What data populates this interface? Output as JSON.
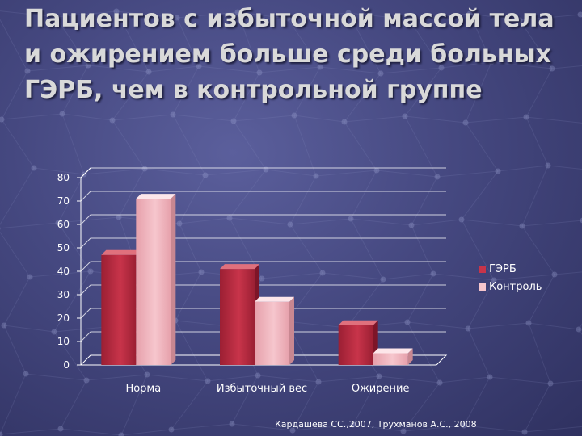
{
  "slide": {
    "title": "Пациентов с избыточной массой тела и ожирением больше среди больных ГЭРБ, чем в контрольной группе",
    "source": "Кардашева СС.,2007, Трухманов А.С., 2008"
  },
  "colors": {
    "background": "#454880",
    "series_gerb": "#c8344a",
    "series_control": "#f6c6cd",
    "gridline": "#ffffff"
  },
  "chart_data": {
    "type": "bar",
    "categories": [
      "Норма",
      "Избыточный вес",
      "Ожирение"
    ],
    "series": [
      {
        "name": "ГЭРБ",
        "values": [
          47,
          41,
          17
        ]
      },
      {
        "name": "Контроль",
        "values": [
          71,
          27,
          5
        ]
      }
    ],
    "yticks": [
      "0",
      "10",
      "20",
      "30",
      "40",
      "50",
      "60",
      "70",
      "80"
    ],
    "ylim": [
      0,
      80
    ],
    "grid": true,
    "legend": "right",
    "three_d": true
  }
}
